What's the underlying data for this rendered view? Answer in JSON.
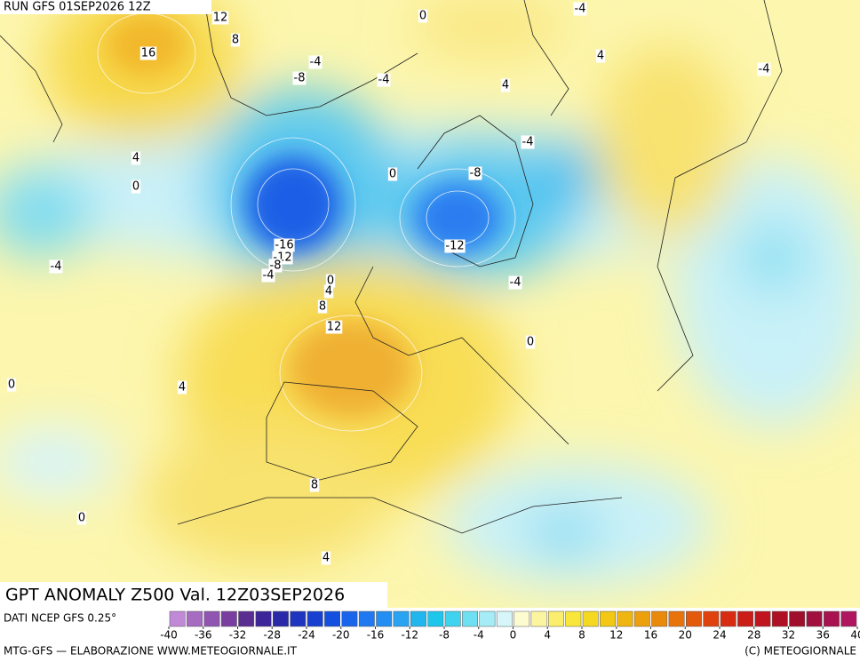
{
  "header": {
    "run": "RUN GFS 01SEP2026 12Z"
  },
  "map": {
    "contour_labels": [
      12,
      8,
      16,
      0,
      -4,
      -4,
      -8,
      -4,
      4,
      4,
      -4,
      -4,
      4,
      0,
      0,
      -8,
      -16,
      -12,
      -8,
      -4,
      -4,
      0,
      4,
      -12,
      -4,
      8,
      12,
      0,
      0,
      4,
      8,
      0,
      4
    ]
  },
  "legend": {
    "title": "GPT ANOMALY Z500 Val. 12Z03SEP2026",
    "source": "DATI NCEP GFS 0.25°",
    "colors": [
      "#c08ad6",
      "#a56cc2",
      "#8f55b0",
      "#7a3ea0",
      "#5a2d90",
      "#3b2598",
      "#2a2aa8",
      "#1f35c0",
      "#1740d0",
      "#1450e0",
      "#1a64ec",
      "#2079f0",
      "#258ef2",
      "#2aa3f2",
      "#22b6ee",
      "#1ec6ec",
      "#3fd3ef",
      "#6fe0f2",
      "#a6ecf6",
      "#d6f6fa",
      "#fdfbd0",
      "#fcf5a0",
      "#fbee6e",
      "#f8e63a",
      "#f5d820",
      "#f2c814",
      "#efb510",
      "#eda00e",
      "#ea8a0c",
      "#e8720c",
      "#e45a0c",
      "#e0420e",
      "#d82c12",
      "#cc1c18",
      "#c0141e",
      "#b01024",
      "#a00e2c",
      "#a21040",
      "#a8124e",
      "#b01660"
    ],
    "ticks": [
      -40,
      -36,
      -32,
      -28,
      -24,
      -20,
      -16,
      -12,
      -8,
      -4,
      0,
      4,
      8,
      12,
      16,
      20,
      24,
      28,
      32,
      36,
      40
    ]
  },
  "footer": {
    "left": "MTG-GFS — ELABORAZIONE WWW.METEOGIORNALE.IT",
    "right": "(C) METEOGIORNALE"
  }
}
